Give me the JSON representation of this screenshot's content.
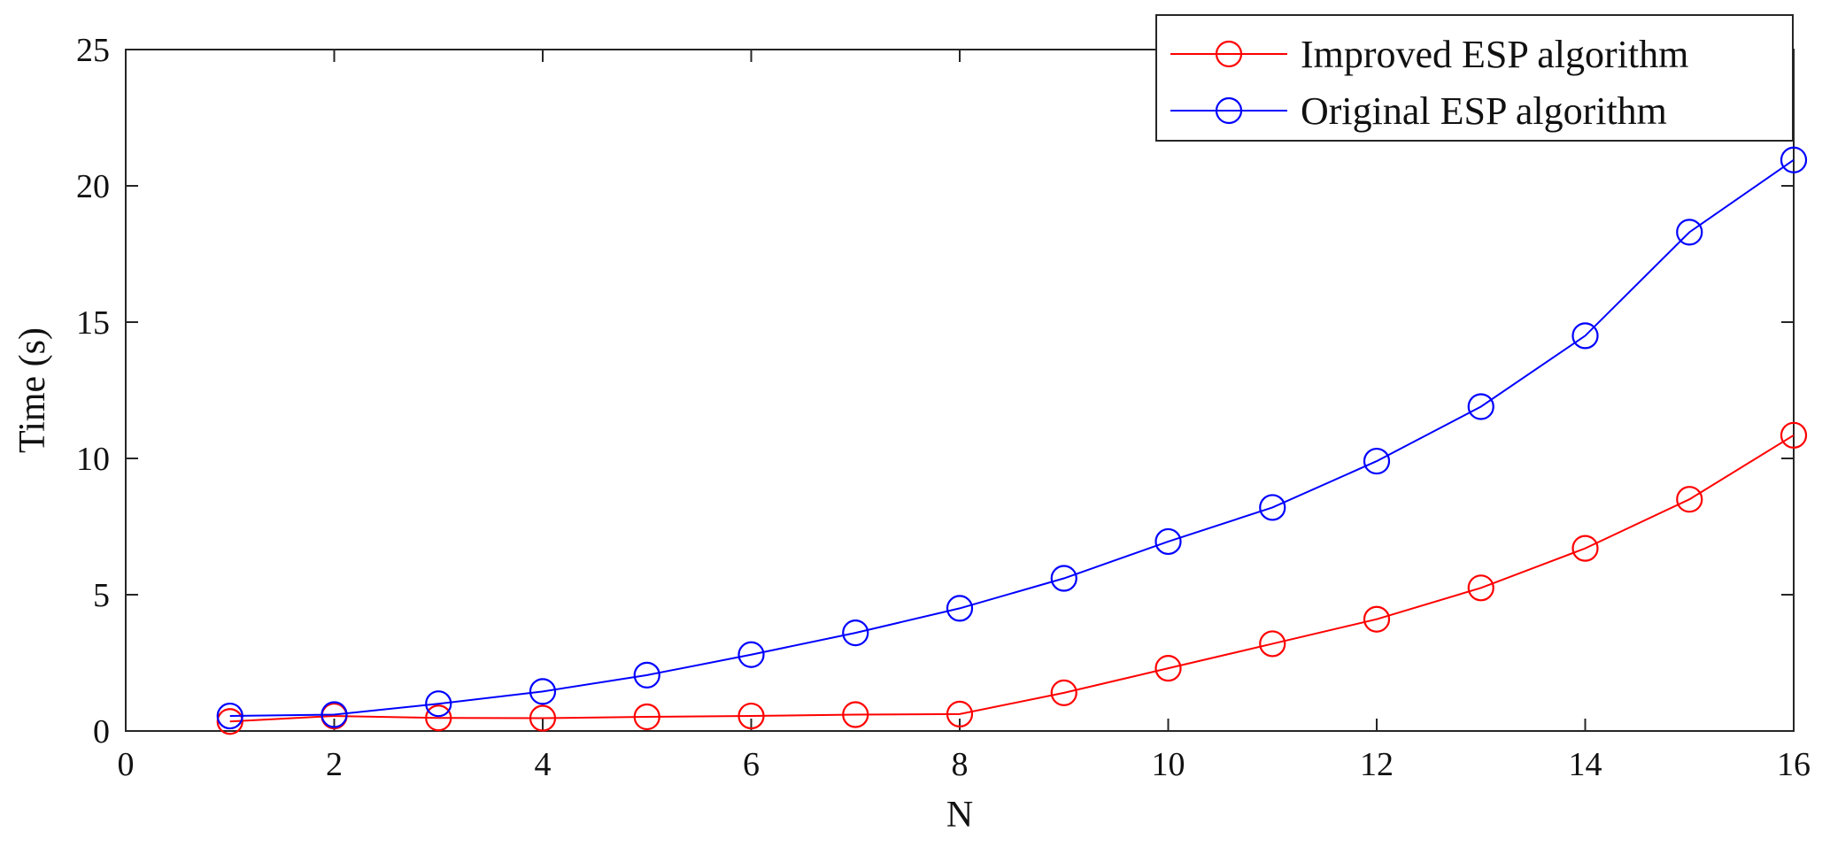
{
  "chart_data": {
    "type": "line",
    "title": "",
    "xlabel": "N",
    "ylabel": "Time (s)",
    "xlim": [
      0,
      16
    ],
    "ylim": [
      0,
      25
    ],
    "xticks": [
      0,
      2,
      4,
      6,
      8,
      10,
      12,
      14,
      16
    ],
    "yticks": [
      0,
      5,
      10,
      15,
      20,
      25
    ],
    "xtick_labels": [
      "0",
      "2",
      "4",
      "6",
      "8",
      "10",
      "12",
      "14",
      "16"
    ],
    "ytick_labels": [
      "0",
      "5",
      "10",
      "15",
      "20",
      "25"
    ],
    "grid": false,
    "legend_position": "top-right",
    "x": [
      1,
      2,
      3,
      4,
      5,
      6,
      7,
      8,
      9,
      10,
      11,
      12,
      13,
      14,
      15,
      16
    ],
    "series": [
      {
        "name": "Improved ESP algorithm",
        "color": "#ff0000",
        "marker": "circle",
        "values": [
          0.35,
          0.55,
          0.48,
          0.47,
          0.52,
          0.55,
          0.6,
          0.62,
          1.4,
          2.3,
          3.2,
          4.1,
          5.25,
          6.7,
          8.5,
          10.85
        ]
      },
      {
        "name": "Original ESP algorithm",
        "color": "#0000ff",
        "marker": "circle",
        "values": [
          0.55,
          0.6,
          1.0,
          1.45,
          2.05,
          2.8,
          3.6,
          4.5,
          5.6,
          6.95,
          8.2,
          9.9,
          11.9,
          14.5,
          18.3,
          20.95
        ]
      }
    ]
  }
}
